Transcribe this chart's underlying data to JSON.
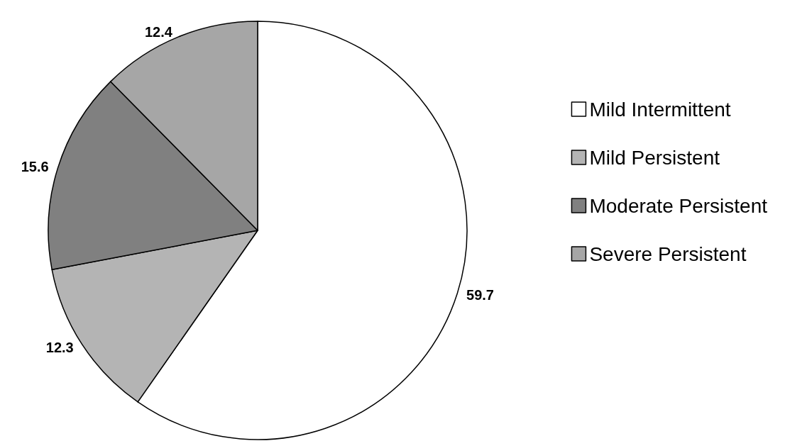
{
  "chart_data": {
    "type": "pie",
    "categories": [
      "Mild Intermittent",
      "Mild Persistent",
      "Moderate Persistent",
      "Severe Persistent"
    ],
    "values": [
      59.7,
      12.3,
      15.6,
      12.4
    ],
    "colors": [
      "#ffffff",
      "#b4b4b4",
      "#808080",
      "#a6a6a6"
    ],
    "data_labels": true,
    "legend": "right"
  }
}
